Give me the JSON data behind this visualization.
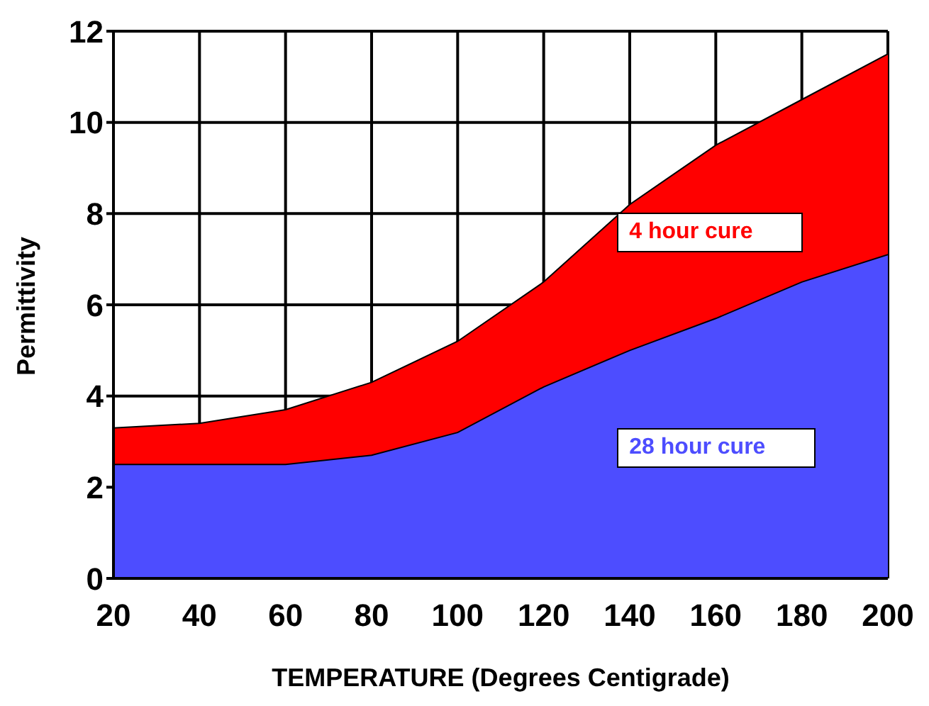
{
  "chart_data": {
    "type": "area",
    "xlabel": "TEMPERATURE (Degrees Centigrade)",
    "ylabel": "Permittivity",
    "x": [
      20,
      40,
      60,
      80,
      100,
      120,
      140,
      160,
      180,
      200
    ],
    "series": [
      {
        "name": "4 hour cure",
        "color": "#ff0000",
        "values": [
          3.3,
          3.4,
          3.7,
          4.3,
          5.2,
          6.5,
          8.2,
          9.5,
          10.5,
          11.5
        ]
      },
      {
        "name": "28 hour cure",
        "color": "#4d4dff",
        "values": [
          2.5,
          2.5,
          2.5,
          2.7,
          3.2,
          4.2,
          5.0,
          5.7,
          6.5,
          7.1
        ]
      }
    ],
    "xlim": [
      20,
      200
    ],
    "xticks": [
      20,
      40,
      60,
      80,
      100,
      120,
      140,
      160,
      180,
      200
    ],
    "ylim": [
      0,
      12
    ],
    "yticks": [
      0,
      2,
      4,
      6,
      8,
      10,
      12
    ],
    "grid": true,
    "legend": false
  }
}
